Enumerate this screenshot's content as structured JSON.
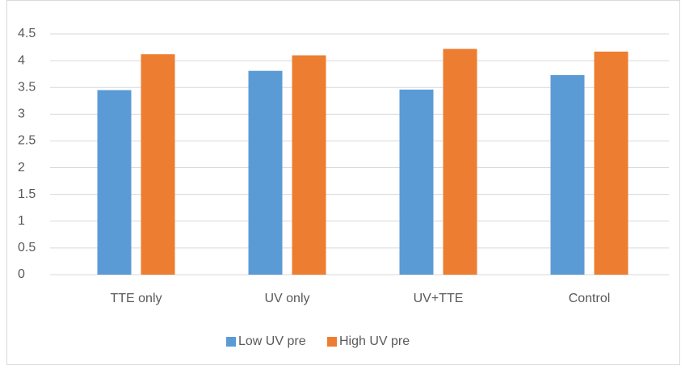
{
  "chart_data": {
    "type": "bar",
    "categories": [
      "TTE only",
      "UV only",
      "UV+TTE",
      "Control"
    ],
    "series": [
      {
        "name": "Low UV pre",
        "color": "#5b9bd5",
        "values": [
          3.45,
          3.81,
          3.46,
          3.73
        ]
      },
      {
        "name": "High UV pre",
        "color": "#ed7d31",
        "values": [
          4.12,
          4.1,
          4.22,
          4.17
        ]
      }
    ],
    "ylim": [
      0,
      4.5
    ],
    "yticks": [
      0,
      0.5,
      1,
      1.5,
      2,
      2.5,
      3,
      3.5,
      4,
      4.5
    ],
    "grid": true,
    "legend": "bottom"
  }
}
